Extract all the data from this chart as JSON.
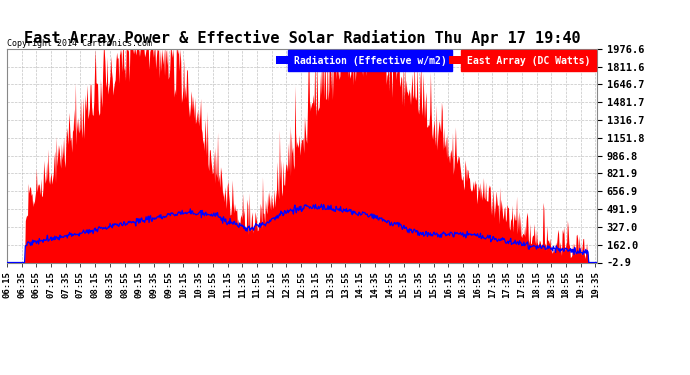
{
  "title": "East Array Power & Effective Solar Radiation Thu Apr 17 19:40",
  "copyright": "Copyright 2014 Cartronics.com",
  "legend_radiation": "Radiation (Effective w/m2)",
  "legend_array": "East Array (DC Watts)",
  "yticks": [
    1976.6,
    1811.6,
    1646.7,
    1481.7,
    1316.7,
    1151.8,
    986.8,
    821.9,
    656.9,
    491.9,
    327.0,
    162.0,
    -2.9
  ],
  "ymin": -2.9,
  "ymax": 1976.6,
  "bg_color": "#ffffff",
  "plot_bg_color": "#ffffff",
  "grid_color": "#aaaaaa",
  "radiation_color": "#0000ff",
  "array_color": "#ff0000",
  "title_color": "#000000",
  "title_fontsize": 11,
  "tick_label_color": "#000000",
  "x_start_min": 375,
  "x_end_min": 1177,
  "n_points": 802
}
